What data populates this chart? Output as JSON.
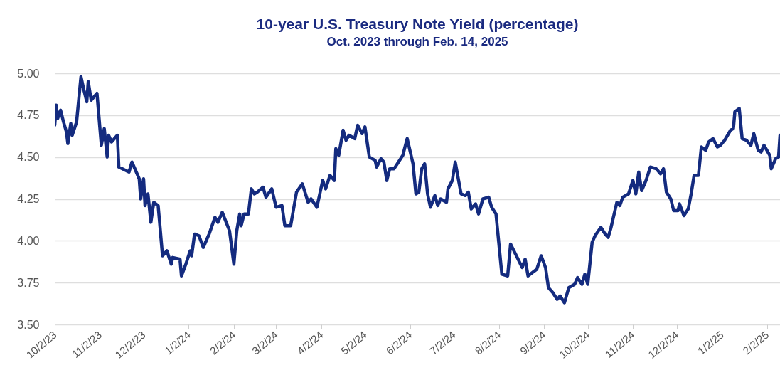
{
  "chart_data": {
    "type": "line",
    "title": "10-year U.S. Treasury Note Yield (percentage)",
    "subtitle": "Oct. 2023 through Feb. 14, 2025",
    "x": [
      "2023-10-02",
      "2023-10-03",
      "2023-10-04",
      "2023-10-06",
      "2023-10-08",
      "2023-10-10",
      "2023-10-11",
      "2023-10-13",
      "2023-10-14",
      "2023-10-17",
      "2023-10-20",
      "2023-10-22",
      "2023-10-24",
      "2023-10-25",
      "2023-10-27",
      "2023-10-29",
      "2023-10-31",
      "2023-11-03",
      "2023-11-05",
      "2023-11-07",
      "2023-11-08",
      "2023-11-10",
      "2023-11-14",
      "2023-11-15",
      "2023-11-22",
      "2023-11-24",
      "2023-11-29",
      "2023-11-30",
      "2023-12-02",
      "2023-12-03",
      "2023-12-05",
      "2023-12-07",
      "2023-12-09",
      "2023-12-12",
      "2023-12-15",
      "2023-12-18",
      "2023-12-21",
      "2023-12-22",
      "2023-12-27",
      "2023-12-28",
      "2023-12-31",
      "2024-01-03",
      "2024-01-04",
      "2024-01-06",
      "2024-01-09",
      "2024-01-12",
      "2024-01-16",
      "2024-01-20",
      "2024-01-22",
      "2024-01-25",
      "2024-01-30",
      "2024-02-02",
      "2024-02-04",
      "2024-02-06",
      "2024-02-07",
      "2024-02-09",
      "2024-02-12",
      "2024-02-14",
      "2024-02-16",
      "2024-02-18",
      "2024-02-22",
      "2024-02-24",
      "2024-02-28",
      "2024-03-02",
      "2024-03-06",
      "2024-03-08",
      "2024-03-12",
      "2024-03-16",
      "2024-03-20",
      "2024-03-24",
      "2024-03-26",
      "2024-03-30",
      "2024-04-03",
      "2024-04-05",
      "2024-04-08",
      "2024-04-11",
      "2024-04-12",
      "2024-04-14",
      "2024-04-17",
      "2024-04-19",
      "2024-04-21",
      "2024-04-25",
      "2024-04-27",
      "2024-04-30",
      "2024-05-02",
      "2024-05-05",
      "2024-05-09",
      "2024-05-10",
      "2024-05-13",
      "2024-05-15",
      "2024-05-17",
      "2024-05-19",
      "2024-05-22",
      "2024-05-25",
      "2024-05-28",
      "2024-05-31",
      "2024-06-04",
      "2024-06-06",
      "2024-06-08",
      "2024-06-10",
      "2024-06-12",
      "2024-06-14",
      "2024-06-16",
      "2024-06-19",
      "2024-06-21",
      "2024-06-23",
      "2024-06-27",
      "2024-06-28",
      "2024-07-01",
      "2024-07-03",
      "2024-07-07",
      "2024-07-10",
      "2024-07-12",
      "2024-07-14",
      "2024-07-17",
      "2024-07-19",
      "2024-07-22",
      "2024-07-26",
      "2024-07-28",
      "2024-07-31",
      "2024-08-04",
      "2024-08-08",
      "2024-08-10",
      "2024-08-14",
      "2024-08-18",
      "2024-08-20",
      "2024-08-22",
      "2024-08-25",
      "2024-08-28",
      "2024-08-31",
      "2024-09-03",
      "2024-09-05",
      "2024-09-08",
      "2024-09-11",
      "2024-09-13",
      "2024-09-16",
      "2024-09-19",
      "2024-09-23",
      "2024-09-25",
      "2024-09-28",
      "2024-09-30",
      "2024-10-02",
      "2024-10-05",
      "2024-10-07",
      "2024-10-11",
      "2024-10-14",
      "2024-10-16",
      "2024-10-18",
      "2024-10-22",
      "2024-10-24",
      "2024-10-26",
      "2024-10-30",
      "2024-11-02",
      "2024-11-04",
      "2024-11-06",
      "2024-11-08",
      "2024-11-11",
      "2024-11-14",
      "2024-11-18",
      "2024-11-21",
      "2024-11-23",
      "2024-11-25",
      "2024-11-28",
      "2024-11-30",
      "2024-12-03",
      "2024-12-04",
      "2024-12-07",
      "2024-12-10",
      "2024-12-12",
      "2024-12-14",
      "2024-12-17",
      "2024-12-19",
      "2024-12-22",
      "2024-12-24",
      "2024-12-27",
      "2024-12-30",
      "2025-01-01",
      "2025-01-04",
      "2025-01-08",
      "2025-01-10",
      "2025-01-11",
      "2025-01-14",
      "2025-01-16",
      "2025-01-19",
      "2025-01-22",
      "2025-01-24",
      "2025-01-27",
      "2025-01-29",
      "2025-01-31",
      "2025-02-04",
      "2025-02-05",
      "2025-02-08",
      "2025-02-10",
      "2025-02-11"
    ],
    "series": [
      {
        "color": "#142b7f",
        "values": [
          4.69,
          4.81,
          4.73,
          4.78,
          4.71,
          4.65,
          4.58,
          4.7,
          4.63,
          4.71,
          4.98,
          4.9,
          4.83,
          4.95,
          4.84,
          4.86,
          4.88,
          4.57,
          4.67,
          4.5,
          4.63,
          4.59,
          4.63,
          4.44,
          4.41,
          4.47,
          4.37,
          4.25,
          4.37,
          4.21,
          4.28,
          4.11,
          4.23,
          4.21,
          3.91,
          3.94,
          3.86,
          3.9,
          3.89,
          3.79,
          3.86,
          3.94,
          3.91,
          4.04,
          4.03,
          3.96,
          4.04,
          4.14,
          4.11,
          4.17,
          4.06,
          3.86,
          4.06,
          4.16,
          4.09,
          4.16,
          4.16,
          4.31,
          4.28,
          4.29,
          4.32,
          4.26,
          4.31,
          4.2,
          4.21,
          4.09,
          4.09,
          4.29,
          4.34,
          4.23,
          4.25,
          4.2,
          4.36,
          4.31,
          4.39,
          4.36,
          4.55,
          4.51,
          4.66,
          4.6,
          4.63,
          4.61,
          4.69,
          4.64,
          4.68,
          4.5,
          4.48,
          4.44,
          4.49,
          4.47,
          4.36,
          4.43,
          4.43,
          4.47,
          4.51,
          4.61,
          4.46,
          4.28,
          4.29,
          4.43,
          4.46,
          4.28,
          4.2,
          4.27,
          4.21,
          4.25,
          4.23,
          4.31,
          4.36,
          4.47,
          4.28,
          4.27,
          4.29,
          4.19,
          4.22,
          4.16,
          4.25,
          4.26,
          4.2,
          4.16,
          3.8,
          3.79,
          3.98,
          3.91,
          3.84,
          3.89,
          3.79,
          3.81,
          3.83,
          3.91,
          3.84,
          3.72,
          3.69,
          3.65,
          3.67,
          3.63,
          3.72,
          3.74,
          3.78,
          3.74,
          3.8,
          3.74,
          3.99,
          4.03,
          4.08,
          4.04,
          4.02,
          4.08,
          4.23,
          4.21,
          4.26,
          4.28,
          4.36,
          4.28,
          4.41,
          4.3,
          4.36,
          4.44,
          4.43,
          4.4,
          4.43,
          4.29,
          4.25,
          4.18,
          4.18,
          4.22,
          4.15,
          4.19,
          4.28,
          4.39,
          4.39,
          4.56,
          4.54,
          4.59,
          4.61,
          4.56,
          4.57,
          4.6,
          4.66,
          4.67,
          4.77,
          4.79,
          4.61,
          4.6,
          4.57,
          4.64,
          4.54,
          4.53,
          4.57,
          4.51,
          4.43,
          4.49,
          4.5,
          4.63
        ]
      }
    ],
    "xlim": [
      "2023-10-02",
      "2025-02-11"
    ],
    "xticks": [
      {
        "value": "2023-10-02",
        "label": "10/2/23"
      },
      {
        "value": "2023-11-02",
        "label": "11/2/23"
      },
      {
        "value": "2023-12-02",
        "label": "12/2/23"
      },
      {
        "value": "2024-01-02",
        "label": "1/2/24"
      },
      {
        "value": "2024-02-02",
        "label": "2/2/24"
      },
      {
        "value": "2024-03-02",
        "label": "3/2/24"
      },
      {
        "value": "2024-04-02",
        "label": "4/2/24"
      },
      {
        "value": "2024-05-02",
        "label": "5/2/24"
      },
      {
        "value": "2024-06-02",
        "label": "6/2/24"
      },
      {
        "value": "2024-07-02",
        "label": "7/2/24"
      },
      {
        "value": "2024-08-02",
        "label": "8/2/24"
      },
      {
        "value": "2024-09-02",
        "label": "9/2/24"
      },
      {
        "value": "2024-10-02",
        "label": "10/2/24"
      },
      {
        "value": "2024-11-02",
        "label": "11/2/24"
      },
      {
        "value": "2024-12-02",
        "label": "12/2/24"
      },
      {
        "value": "2025-01-02",
        "label": "1/2/25"
      },
      {
        "value": "2025-02-02",
        "label": "2/2/25"
      }
    ],
    "ylim": [
      3.5,
      5
    ],
    "yticks": [
      {
        "value": 3.5,
        "label": "3.50"
      },
      {
        "value": 3.75,
        "label": "3.75"
      },
      {
        "value": 4,
        "label": "4.00"
      },
      {
        "value": 4.25,
        "label": "4.25"
      },
      {
        "value": 4.5,
        "label": "4.50"
      },
      {
        "value": 4.75,
        "label": "4.75"
      },
      {
        "value": 5,
        "label": "5.00"
      }
    ],
    "grid": "y",
    "marker": "none",
    "line_style": "solid"
  }
}
